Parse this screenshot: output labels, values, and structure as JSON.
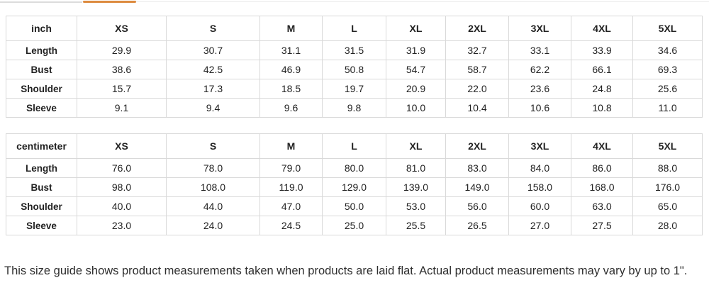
{
  "tabs": {
    "active_underline_color": "#dd8a3e",
    "track_color": "#ececec"
  },
  "tables": [
    {
      "unit_label": "inch",
      "columns": [
        "XS",
        "S",
        "M",
        "L",
        "XL",
        "2XL",
        "3XL",
        "4XL",
        "5XL"
      ],
      "rows": [
        {
          "label": "Length",
          "values": [
            "29.9",
            "30.7",
            "31.1",
            "31.5",
            "31.9",
            "32.7",
            "33.1",
            "33.9",
            "34.6"
          ]
        },
        {
          "label": "Bust",
          "values": [
            "38.6",
            "42.5",
            "46.9",
            "50.8",
            "54.7",
            "58.7",
            "62.2",
            "66.1",
            "69.3"
          ]
        },
        {
          "label": "Shoulder",
          "values": [
            "15.7",
            "17.3",
            "18.5",
            "19.7",
            "20.9",
            "22.0",
            "23.6",
            "24.8",
            "25.6"
          ]
        },
        {
          "label": "Sleeve",
          "values": [
            "9.1",
            "9.4",
            "9.6",
            "9.8",
            "10.0",
            "10.4",
            "10.6",
            "10.8",
            "11.0"
          ]
        }
      ]
    },
    {
      "unit_label": "centimeter",
      "columns": [
        "XS",
        "S",
        "M",
        "L",
        "XL",
        "2XL",
        "3XL",
        "4XL",
        "5XL"
      ],
      "rows": [
        {
          "label": "Length",
          "values": [
            "76.0",
            "78.0",
            "79.0",
            "80.0",
            "81.0",
            "83.0",
            "84.0",
            "86.0",
            "88.0"
          ]
        },
        {
          "label": "Bust",
          "values": [
            "98.0",
            "108.0",
            "119.0",
            "129.0",
            "139.0",
            "149.0",
            "158.0",
            "168.0",
            "176.0"
          ]
        },
        {
          "label": "Shoulder",
          "values": [
            "40.0",
            "44.0",
            "47.0",
            "50.0",
            "53.0",
            "56.0",
            "60.0",
            "63.0",
            "65.0"
          ]
        },
        {
          "label": "Sleeve",
          "values": [
            "23.0",
            "24.0",
            "24.5",
            "25.0",
            "25.5",
            "26.5",
            "27.0",
            "27.5",
            "28.0"
          ]
        }
      ]
    }
  ],
  "footer": {
    "note": "This size guide shows product measurements taken when products are laid flat. Actual product measurements may vary by up to 1\"."
  }
}
